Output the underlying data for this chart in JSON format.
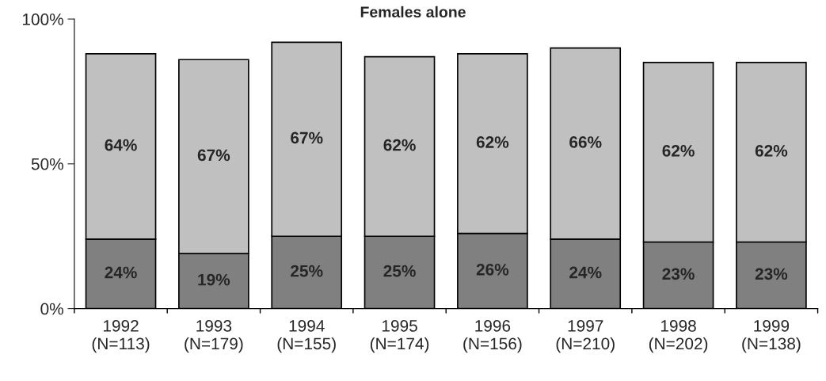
{
  "chart_data": {
    "type": "bar",
    "title": "Females alone",
    "stacked": true,
    "categories": [
      "1992\n(N=113)",
      "1993\n(N=179)",
      "1994\n(N=155)",
      "1995\n(N=174)",
      "1996\n(N=156)",
      "1997\n(N=210)",
      "1998\n(N=202)",
      "1999\n(N=138)"
    ],
    "series": [
      {
        "color": "#808080",
        "values": [
          24,
          19,
          25,
          25,
          26,
          24,
          23,
          23
        ],
        "value_labels": [
          "24%",
          "19%",
          "25%",
          "25%",
          "26%",
          "24%",
          "23%",
          "23%"
        ]
      },
      {
        "color": "#c0c0c0",
        "values": [
          64,
          67,
          67,
          62,
          62,
          66,
          62,
          62
        ],
        "value_labels": [
          "64%",
          "67%",
          "67%",
          "62%",
          "62%",
          "66%",
          "62%",
          "62%"
        ]
      }
    ],
    "ylim": [
      0,
      100
    ],
    "yticks": [
      {
        "value": 0,
        "label": "0%"
      },
      {
        "value": 50,
        "label": "50%"
      },
      {
        "value": 100,
        "label": "100%"
      }
    ],
    "grid": false,
    "legend": false
  }
}
